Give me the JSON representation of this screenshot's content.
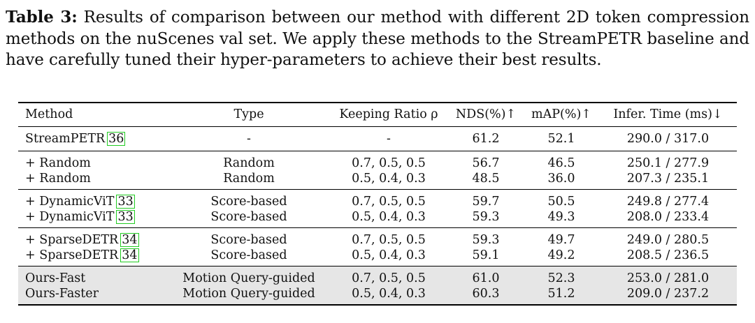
{
  "caption": {
    "label": "Table 3:",
    "text": "Results of comparison between our method with different 2D token compression methods on the nuScenes val set. We apply these methods to the StreamPETR baseline and have carefully tuned their hyper-parameters to achieve their best results."
  },
  "table": {
    "headers": {
      "method": "Method",
      "type": "Type",
      "ratio": "Keeping Ratio ρ",
      "nds": "NDS(%)↑",
      "map": "mAP(%)↑",
      "time": "Infer. Time (ms)↓"
    },
    "groups": [
      [
        {
          "method": "StreamPETR",
          "cite": "36",
          "type": "-",
          "ratio": "-",
          "nds": "61.2",
          "map": "52.1",
          "time": "290.0 / 317.0"
        }
      ],
      [
        {
          "method": "+ Random",
          "cite": "",
          "type": "Random",
          "ratio": "0.7, 0.5, 0.5",
          "nds": "56.7",
          "map": "46.5",
          "time": "250.1 / 277.9"
        },
        {
          "method": "+ Random",
          "cite": "",
          "type": "Random",
          "ratio": "0.5, 0.4, 0.3",
          "nds": "48.5",
          "map": "36.0",
          "time": "207.3 / 235.1"
        }
      ],
      [
        {
          "method": "+ DynamicViT",
          "cite": "33",
          "type": "Score-based",
          "ratio": "0.7, 0.5, 0.5",
          "nds": "59.7",
          "map": "50.5",
          "time": "249.8 / 277.4"
        },
        {
          "method": "+ DynamicViT",
          "cite": "33",
          "type": "Score-based",
          "ratio": "0.5, 0.4, 0.3",
          "nds": "59.3",
          "map": "49.3",
          "time": "208.0 / 233.4"
        }
      ],
      [
        {
          "method": "+ SparseDETR",
          "cite": "34",
          "type": "Score-based",
          "ratio": "0.7, 0.5, 0.5",
          "nds": "59.3",
          "map": "49.7",
          "time": "249.0 / 280.5"
        },
        {
          "method": "+ SparseDETR",
          "cite": "34",
          "type": "Score-based",
          "ratio": "0.5, 0.4, 0.3",
          "nds": "59.1",
          "map": "49.2",
          "time": "208.5 / 236.5"
        }
      ],
      [
        {
          "method": "Ours-Fast",
          "cite": "",
          "type": "Motion Query-guided",
          "ratio": "0.7, 0.5, 0.5",
          "nds": "61.0",
          "map": "52.3",
          "time": "253.0 / 281.0"
        },
        {
          "method": "Ours-Faster",
          "cite": "",
          "type": "Motion Query-guided",
          "ratio": "0.5, 0.4, 0.3",
          "nds": "60.3",
          "map": "51.2",
          "time": "209.0 / 237.2"
        }
      ]
    ],
    "colors": {
      "citation_box": "#22cc22",
      "highlight_row": "#e6e6e6"
    }
  }
}
